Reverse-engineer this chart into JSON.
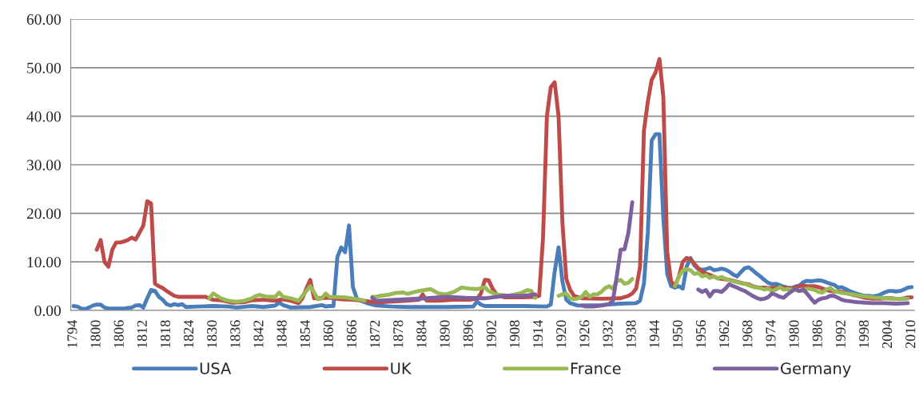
{
  "chart_data": {
    "type": "line",
    "xlim": [
      1793.3,
      2010.7
    ],
    "xticks": [
      1794,
      1800,
      1806,
      1812,
      1818,
      1824,
      1830,
      1836,
      1842,
      1848,
      1854,
      1860,
      1866,
      1872,
      1878,
      1884,
      1890,
      1896,
      1902,
      1908,
      1914,
      1920,
      1926,
      1932,
      1938,
      1944,
      1950,
      1956,
      1962,
      1968,
      1974,
      1980,
      1986,
      1992,
      1998,
      2004,
      2010
    ],
    "ylim": [
      0,
      60
    ],
    "yticks": [
      {
        "value": 0,
        "label": "0.00"
      },
      {
        "value": 10,
        "label": "10.00"
      },
      {
        "value": 20,
        "label": "20.00"
      },
      {
        "value": 30,
        "label": "30.00"
      },
      {
        "value": 40,
        "label": "40.00"
      },
      {
        "value": 50,
        "label": "50.00"
      },
      {
        "value": 60,
        "label": "60.00"
      }
    ],
    "grid": "y",
    "legend": "bottom",
    "marker": "none",
    "line_style": "solid",
    "series": [
      {
        "name": "USA",
        "color": "#4a7ebb",
        "x": [
          1794,
          1795,
          1796,
          1797,
          1798,
          1799,
          1800,
          1801,
          1802,
          1803,
          1805,
          1807,
          1808,
          1809,
          1810,
          1811,
          1812,
          1813,
          1814,
          1815,
          1816,
          1817,
          1818,
          1819,
          1820,
          1821,
          1822,
          1823,
          1826,
          1830,
          1834,
          1836,
          1840,
          1843,
          1845,
          1846,
          1847,
          1848,
          1850,
          1855,
          1858,
          1859,
          1860,
          1861,
          1862,
          1863,
          1864,
          1865,
          1866,
          1867,
          1868,
          1870,
          1872,
          1876,
          1880,
          1890,
          1897,
          1898,
          1899,
          1900,
          1905,
          1910,
          1916,
          1917,
          1918,
          1919,
          1920,
          1921,
          1922,
          1924,
          1930,
          1935,
          1939,
          1940,
          1941,
          1942,
          1943,
          1944,
          1945,
          1946,
          1947,
          1948,
          1949,
          1950,
          1951,
          1952,
          1953,
          1954,
          1955,
          1956,
          1957,
          1958,
          1959,
          1960,
          1961,
          1962,
          1963,
          1964,
          1965,
          1966,
          1967,
          1968,
          1969,
          1970,
          1971,
          1972,
          1973,
          1974,
          1975,
          1976,
          1977,
          1978,
          1979,
          1980,
          1981,
          1982,
          1983,
          1984,
          1985,
          1986,
          1987,
          1988,
          1989,
          1990,
          1991,
          1992,
          1993,
          1994,
          1995,
          1996,
          1997,
          1998,
          1999,
          2000,
          2001,
          2002,
          2003,
          2004,
          2005,
          2006,
          2007,
          2008,
          2009,
          2010
        ],
        "values": [
          0.9,
          0.8,
          0.4,
          0.3,
          0.6,
          1.0,
          1.2,
          1.2,
          0.6,
          0.4,
          0.4,
          0.4,
          0.5,
          0.6,
          1.0,
          1.1,
          0.6,
          2.5,
          4.2,
          4.0,
          2.8,
          2.2,
          1.3,
          1.0,
          1.3,
          1.1,
          1.3,
          0.7,
          0.8,
          0.9,
          0.8,
          0.6,
          0.9,
          0.7,
          0.9,
          1.0,
          1.6,
          1.1,
          0.6,
          0.7,
          1.1,
          0.8,
          0.9,
          0.9,
          11,
          13,
          12,
          17.5,
          4.8,
          2.5,
          2.0,
          1.4,
          1.0,
          0.8,
          0.7,
          0.7,
          0.8,
          1.8,
          1.2,
          0.9,
          0.9,
          0.9,
          0.8,
          1.2,
          8,
          13,
          6,
          2.2,
          1.5,
          1.0,
          1.1,
          1.4,
          1.5,
          2,
          5.5,
          16,
          35,
          36.3,
          36.3,
          19,
          7.5,
          5,
          4.7,
          5,
          4.5,
          9,
          10.8,
          9.3,
          8.5,
          8.4,
          8.5,
          8.8,
          8.3,
          8.4,
          8.6,
          8.4,
          8,
          7.4,
          7,
          7.9,
          8.7,
          8.9,
          8.3,
          7.6,
          7,
          6.3,
          5.7,
          5.4,
          5.5,
          5.2,
          4.9,
          4.7,
          4.6,
          4.9,
          5.1,
          5.8,
          6.1,
          6,
          6.1,
          6.2,
          6.1,
          5.8,
          5.5,
          5.3,
          4.7,
          4.8,
          4.4,
          4,
          3.7,
          3.4,
          3.2,
          3,
          3,
          2.9,
          3,
          3.3,
          3.7,
          4,
          4,
          3.9,
          4,
          4.3,
          4.7,
          4.8
        ]
      },
      {
        "name": "UK",
        "color": "#be4b48",
        "x": [
          1800,
          1801,
          1802,
          1803,
          1804,
          1805,
          1806,
          1807,
          1808,
          1809,
          1810,
          1811,
          1812,
          1813,
          1814,
          1815,
          1816,
          1817,
          1818,
          1819,
          1820,
          1821,
          1822,
          1825,
          1828,
          1830,
          1832,
          1835,
          1838,
          1840,
          1843,
          1846,
          1848,
          1850,
          1852,
          1853,
          1854,
          1855,
          1856,
          1857,
          1860,
          1863,
          1866,
          1869,
          1872,
          1875,
          1880,
          1883,
          1884,
          1885,
          1888,
          1892,
          1896,
          1898,
          1899,
          1900,
          1901,
          1902,
          1903,
          1905,
          1910,
          1913,
          1914,
          1915,
          1916,
          1917,
          1918,
          1919,
          1920,
          1921,
          1922,
          1923,
          1925,
          1930,
          1935,
          1937,
          1938,
          1939,
          1940,
          1941,
          1942,
          1943,
          1944,
          1945,
          1946,
          1947,
          1948,
          1949,
          1950,
          1951,
          1952,
          1953,
          1954,
          1955,
          1956,
          1957,
          1958,
          1959,
          1960,
          1961,
          1962,
          1963,
          1964,
          1965,
          1966,
          1967,
          1968,
          1969,
          1970,
          1971,
          1972,
          1973,
          1974,
          1975,
          1976,
          1977,
          1978,
          1979,
          1980,
          1981,
          1982,
          1983,
          1984,
          1985,
          1986,
          1987,
          1988,
          1989,
          1990,
          1991,
          1992,
          1993,
          1994,
          1995,
          1996,
          1997,
          1998,
          1999,
          2000,
          2001,
          2002,
          2003,
          2004,
          2005,
          2006,
          2007,
          2008,
          2009,
          2010
        ],
        "values": [
          12.5,
          14.5,
          10,
          9,
          12.5,
          14,
          14,
          14.2,
          14.5,
          15,
          14.6,
          16,
          17.5,
          22.5,
          22,
          5.5,
          5,
          4.6,
          4,
          3.5,
          3,
          2.8,
          2.8,
          2.8,
          2.8,
          2.2,
          2.1,
          1.6,
          1.7,
          2.1,
          2.2,
          2.0,
          2.3,
          2.0,
          1.5,
          2.5,
          4.5,
          6.3,
          2.5,
          2.5,
          2.6,
          2.3,
          2.2,
          2.0,
          1.6,
          1.8,
          2.0,
          2.2,
          3.3,
          2.0,
          2.0,
          2.2,
          2.2,
          2.4,
          3.5,
          6.3,
          6.2,
          4.5,
          3.3,
          2.7,
          2.7,
          2.8,
          3.0,
          15,
          40,
          46,
          47,
          40,
          18,
          6.5,
          4.2,
          3,
          2.5,
          2.4,
          2.5,
          3.0,
          3.5,
          4.5,
          9,
          37,
          43,
          47.5,
          49,
          51.8,
          44,
          12,
          6,
          5,
          7,
          10,
          10.8,
          10.5,
          9.6,
          8.7,
          8,
          7.6,
          7.3,
          7,
          6.6,
          6.5,
          6.4,
          6.3,
          6.1,
          5.9,
          5.7,
          5.5,
          5.4,
          5,
          4.8,
          4.7,
          4.7,
          4.6,
          4.6,
          4.7,
          4.8,
          4.6,
          4.6,
          4.5,
          4.7,
          5,
          5.1,
          5,
          5,
          5,
          4.8,
          4.5,
          4.2,
          4,
          3.9,
          3.9,
          3.8,
          3.6,
          3.4,
          3.2,
          3,
          2.8,
          2.6,
          2.5,
          2.4,
          2.4,
          2.4,
          2.5,
          2.5,
          2.5,
          2.4,
          2.4,
          2.5,
          2.7,
          2.7
        ]
      },
      {
        "name": "France",
        "color": "#98b954",
        "x": [
          1829,
          1830,
          1831,
          1832,
          1833,
          1834,
          1836,
          1838,
          1840,
          1841,
          1842,
          1843,
          1844,
          1846,
          1847,
          1848,
          1850,
          1852,
          1854,
          1855,
          1856,
          1857,
          1858,
          1859,
          1860,
          1864,
          1868,
          1869,
          1870,
          1871,
          1872,
          1873,
          1875,
          1877,
          1879,
          1880,
          1883,
          1886,
          1888,
          1890,
          1892,
          1894,
          1896,
          1898,
          1900,
          1901,
          1903,
          1906,
          1909,
          1911,
          1912,
          1913,
          1916,
          1919,
          1920,
          1921,
          1922,
          1923,
          1924,
          1925,
          1926,
          1927,
          1928,
          1929,
          1930,
          1931,
          1932,
          1933,
          1934,
          1935,
          1936,
          1937,
          1938,
          1944,
          1949,
          1950,
          1951,
          1952,
          1953,
          1954,
          1955,
          1956,
          1957,
          1958,
          1959,
          1960,
          1961,
          1962,
          1963,
          1964,
          1965,
          1966,
          1967,
          1968,
          1969,
          1970,
          1971,
          1972,
          1973,
          1974,
          1975,
          1976,
          1977,
          1978,
          1979,
          1980,
          1981,
          1982,
          1983,
          1984,
          1985,
          1986,
          1987,
          1988,
          1989,
          1990,
          1991,
          1992,
          1993,
          1994,
          1995,
          1996,
          1997,
          1998,
          1999,
          2000,
          2001,
          2002,
          2003,
          2004,
          2005,
          2006,
          2007,
          2008,
          2009
        ],
        "values": [
          2.5,
          3.5,
          3,
          2.5,
          2.2,
          2,
          1.8,
          2,
          2.5,
          3,
          3.2,
          3,
          2.8,
          2.8,
          3.7,
          2.8,
          2.5,
          2,
          4,
          5,
          3.7,
          2.3,
          2.5,
          3.5,
          2.8,
          2.7,
          2.2,
          2.0,
          null,
          2.8,
          2.8,
          3.0,
          3.2,
          3.6,
          3.7,
          3.4,
          4.0,
          4.4,
          3.5,
          3.3,
          3.8,
          4.7,
          4.5,
          4.4,
          4.8,
          4.0,
          3.3,
          3.0,
          3.5,
          4.2,
          4.0,
          2.6,
          null,
          3,
          3.3,
          3.5,
          2.5,
          2.3,
          2.5,
          2.8,
          3.8,
          2.8,
          3.3,
          3.3,
          3.8,
          4.6,
          5,
          4.5,
          6,
          6.3,
          5.5,
          5.7,
          6.5,
          null,
          5,
          7,
          8.2,
          8.5,
          8.3,
          7.5,
          7.7,
          7,
          7.3,
          6.7,
          7,
          6.6,
          6.9,
          6.5,
          6.3,
          6,
          5.8,
          5.6,
          5.5,
          5.2,
          4.9,
          4.7,
          4.6,
          4.3,
          4.5,
          4.0,
          4.3,
          4.8,
          4.3,
          4.4,
          4.3,
          4.2,
          4.0,
          4.1,
          4.5,
          4.4,
          4.2,
          3.8,
          3.7,
          4.3,
          4.6,
          4.0,
          3.8,
          3.6,
          3.5,
          3.4,
          3.3,
          3.1,
          3.0,
          2.9,
          2.8,
          2.7,
          2.6,
          2.6,
          2.5,
          2.5,
          2.4,
          2.4,
          2.4,
          2.4,
          2.4
        ]
      },
      {
        "name": "Germany",
        "color": "#7d60a0",
        "x": [
          1871,
          1872,
          1875,
          1880,
          1885,
          1890,
          1895,
          1900,
          1905,
          1910,
          1913,
          1919,
          1925,
          1926,
          1928,
          1930,
          1932,
          1933,
          1934,
          1935,
          1936,
          1937,
          1938,
          1946,
          1955,
          1956,
          1957,
          1958,
          1959,
          1960,
          1961,
          1962,
          1963,
          1964,
          1965,
          1966,
          1967,
          1968,
          1969,
          1970,
          1971,
          1972,
          1973,
          1974,
          1975,
          1976,
          1977,
          1978,
          1979,
          1980,
          1981,
          1982,
          1983,
          1984,
          1985,
          1986,
          1987,
          1988,
          1989,
          1990,
          1991,
          1992,
          1993,
          1994,
          1995,
          1996,
          1998,
          2000,
          2003,
          2006,
          2009
        ],
        "values": [
          2.6,
          2.0,
          2.1,
          2.3,
          2.5,
          2.8,
          2.6,
          2.5,
          3,
          3,
          3.3,
          null,
          1,
          0.8,
          0.8,
          1.0,
          1.3,
          2,
          7,
          12.5,
          12.6,
          16,
          22.3,
          null,
          4.3,
          3.8,
          4.2,
          2.9,
          4,
          4,
          3.8,
          4.5,
          5.4,
          5,
          4.7,
          4.3,
          4,
          3.5,
          3,
          2.6,
          2.3,
          2.4,
          2.7,
          3.5,
          3.2,
          2.8,
          2.6,
          3.3,
          3.9,
          4.5,
          4.0,
          4.3,
          3.5,
          2.5,
          1.6,
          2.2,
          2.5,
          2.6,
          3,
          3,
          2.6,
          2.2,
          2,
          1.9,
          1.8,
          1.7,
          1.6,
          1.5,
          1.5,
          1.4,
          1.5
        ]
      }
    ]
  }
}
